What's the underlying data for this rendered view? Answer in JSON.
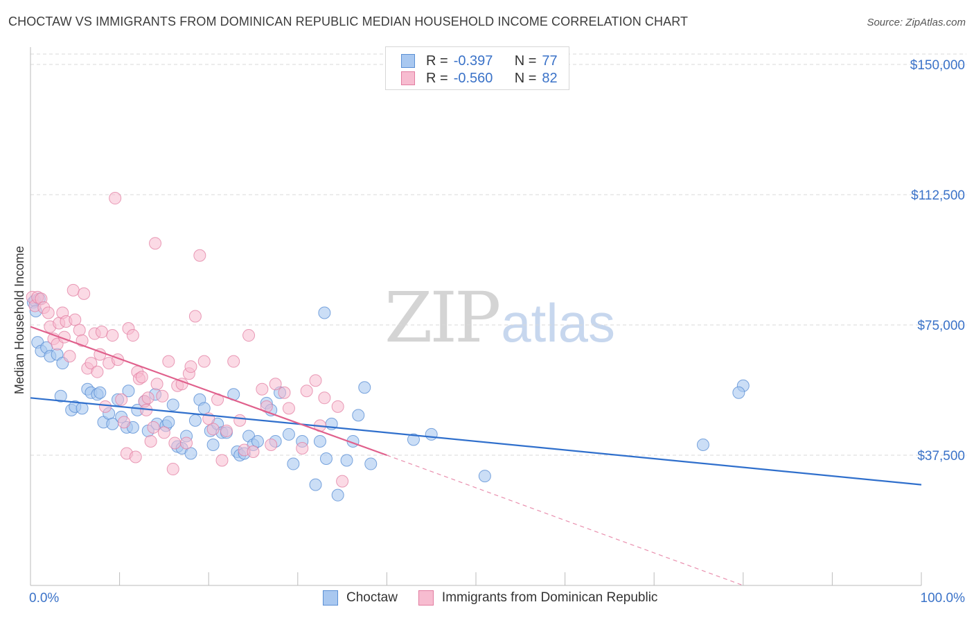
{
  "header": {
    "title": "CHOCTAW VS IMMIGRANTS FROM DOMINICAN REPUBLIC MEDIAN HOUSEHOLD INCOME CORRELATION CHART",
    "source": "Source: ZipAtlas.com"
  },
  "watermark": {
    "zip": "ZIP",
    "atlas": "atlas"
  },
  "legend": {
    "rows": [
      {
        "r_label": "R =",
        "r_value": "-0.397",
        "n_label": "N =",
        "n_value": "77",
        "color": "#a9c8f0",
        "stroke": "#5a8fd4"
      },
      {
        "r_label": "R =",
        "r_value": "-0.560",
        "n_label": "N =",
        "n_value": "82",
        "color": "#f7bcd0",
        "stroke": "#e27ca0"
      }
    ]
  },
  "bottom_legend": {
    "items": [
      {
        "label": "Choctaw",
        "color": "#a9c8f0",
        "stroke": "#5a8fd4"
      },
      {
        "label": "Immigrants from Dominican Republic",
        "color": "#f7bcd0",
        "stroke": "#e27ca0"
      }
    ]
  },
  "chart_data": {
    "type": "scatter",
    "title": "CHOCTAW VS IMMIGRANTS FROM DOMINICAN REPUBLIC MEDIAN HOUSEHOLD INCOME CORRELATION CHART",
    "xlabel": "",
    "ylabel": "Median Household Income",
    "xlim": [
      0,
      100
    ],
    "ylim": [
      0,
      153000
    ],
    "x_tick_labels": [
      "0.0%",
      "100.0%"
    ],
    "y_ticks": [
      37500,
      75000,
      112500,
      150000
    ],
    "y_tick_labels": [
      "$37,500",
      "$75,000",
      "$112,500",
      "$150,000"
    ],
    "colors": {
      "choctaw_fill": "#a9c8f0",
      "choctaw_stroke": "#5a8fd4",
      "choctaw_line": "#2f6fcc",
      "dominican_fill": "#f7bcd0",
      "dominican_stroke": "#e27ca0",
      "dominican_line": "#e0608c",
      "grid": "#d9d9d9",
      "axis": "#bbbbbb"
    },
    "series": [
      {
        "name": "Choctaw",
        "points": [
          [
            0.3,
            81500
          ],
          [
            0.5,
            82000
          ],
          [
            0.8,
            70000
          ],
          [
            1.2,
            67500
          ],
          [
            1.8,
            68500
          ],
          [
            2.2,
            66000
          ],
          [
            3.0,
            66500
          ],
          [
            3.6,
            64000
          ],
          [
            3.4,
            54500
          ],
          [
            4.6,
            50500
          ],
          [
            5.0,
            51500
          ],
          [
            5.8,
            51000
          ],
          [
            6.4,
            56500
          ],
          [
            6.8,
            55500
          ],
          [
            7.5,
            55000
          ],
          [
            7.8,
            55500
          ],
          [
            8.2,
            47000
          ],
          [
            8.8,
            49500
          ],
          [
            9.2,
            46500
          ],
          [
            9.8,
            53500
          ],
          [
            10.2,
            48500
          ],
          [
            10.8,
            45500
          ],
          [
            11.0,
            56000
          ],
          [
            11.5,
            45500
          ],
          [
            12.0,
            50500
          ],
          [
            12.8,
            53000
          ],
          [
            13.2,
            44500
          ],
          [
            14.0,
            55000
          ],
          [
            14.2,
            46500
          ],
          [
            15.2,
            46000
          ],
          [
            15.5,
            47000
          ],
          [
            16.0,
            52000
          ],
          [
            16.5,
            40000
          ],
          [
            17.0,
            39500
          ],
          [
            17.5,
            43000
          ],
          [
            18.0,
            38000
          ],
          [
            18.5,
            47500
          ],
          [
            19.0,
            53500
          ],
          [
            19.5,
            51000
          ],
          [
            20.2,
            44500
          ],
          [
            20.5,
            40500
          ],
          [
            21.0,
            46500
          ],
          [
            21.5,
            44000
          ],
          [
            22.0,
            44000
          ],
          [
            22.8,
            55000
          ],
          [
            23.2,
            38500
          ],
          [
            23.5,
            37500
          ],
          [
            24.0,
            38000
          ],
          [
            24.5,
            43000
          ],
          [
            25.0,
            40500
          ],
          [
            25.5,
            41500
          ],
          [
            26.5,
            52500
          ],
          [
            27.0,
            50500
          ],
          [
            27.5,
            41500
          ],
          [
            28.0,
            55500
          ],
          [
            29.0,
            43500
          ],
          [
            29.5,
            35000
          ],
          [
            30.5,
            41500
          ],
          [
            32.0,
            29000
          ],
          [
            32.5,
            41500
          ],
          [
            33.0,
            78500
          ],
          [
            33.2,
            36500
          ],
          [
            33.8,
            46500
          ],
          [
            34.5,
            26000
          ],
          [
            35.5,
            36000
          ],
          [
            36.2,
            41500
          ],
          [
            36.8,
            49000
          ],
          [
            37.5,
            57000
          ],
          [
            38.2,
            35000
          ],
          [
            43.0,
            42000
          ],
          [
            45.0,
            43500
          ],
          [
            51.0,
            31500
          ],
          [
            75.5,
            40500
          ],
          [
            80.0,
            57500
          ],
          [
            79.5,
            55500
          ],
          [
            1.0,
            82500
          ],
          [
            0.6,
            79000
          ]
        ]
      },
      {
        "name": "Immigrants from Dominican Republic",
        "points": [
          [
            0.2,
            83000
          ],
          [
            0.5,
            80500
          ],
          [
            0.8,
            83000
          ],
          [
            1.2,
            82500
          ],
          [
            1.5,
            80000
          ],
          [
            2.0,
            78500
          ],
          [
            2.2,
            74500
          ],
          [
            2.6,
            71000
          ],
          [
            3.0,
            69500
          ],
          [
            3.2,
            75500
          ],
          [
            3.6,
            78500
          ],
          [
            3.8,
            71500
          ],
          [
            4.0,
            76000
          ],
          [
            4.4,
            66000
          ],
          [
            4.8,
            85000
          ],
          [
            5.0,
            76500
          ],
          [
            5.5,
            73500
          ],
          [
            5.8,
            70500
          ],
          [
            6.0,
            84000
          ],
          [
            6.4,
            62500
          ],
          [
            6.8,
            64000
          ],
          [
            7.2,
            72500
          ],
          [
            7.5,
            61500
          ],
          [
            7.8,
            66500
          ],
          [
            8.0,
            73000
          ],
          [
            8.4,
            51500
          ],
          [
            8.8,
            64000
          ],
          [
            9.2,
            72000
          ],
          [
            9.5,
            111500
          ],
          [
            9.8,
            65000
          ],
          [
            10.2,
            53500
          ],
          [
            10.5,
            47000
          ],
          [
            10.8,
            38000
          ],
          [
            11.0,
            74000
          ],
          [
            11.5,
            72000
          ],
          [
            11.8,
            37000
          ],
          [
            12.0,
            61500
          ],
          [
            12.2,
            59500
          ],
          [
            12.5,
            60000
          ],
          [
            12.8,
            53000
          ],
          [
            13.0,
            50500
          ],
          [
            13.2,
            54000
          ],
          [
            13.5,
            41500
          ],
          [
            13.8,
            45500
          ],
          [
            14.0,
            98500
          ],
          [
            14.2,
            58000
          ],
          [
            14.8,
            54500
          ],
          [
            15.0,
            44000
          ],
          [
            15.5,
            64500
          ],
          [
            16.0,
            33500
          ],
          [
            16.2,
            41000
          ],
          [
            16.5,
            57500
          ],
          [
            17.0,
            58000
          ],
          [
            17.5,
            41000
          ],
          [
            17.8,
            61000
          ],
          [
            18.0,
            63000
          ],
          [
            18.5,
            77500
          ],
          [
            19.0,
            95000
          ],
          [
            19.5,
            64500
          ],
          [
            20.0,
            48000
          ],
          [
            20.5,
            45000
          ],
          [
            21.0,
            53500
          ],
          [
            21.5,
            36000
          ],
          [
            22.0,
            44500
          ],
          [
            22.8,
            64500
          ],
          [
            23.5,
            47500
          ],
          [
            24.0,
            39000
          ],
          [
            24.5,
            72000
          ],
          [
            25.0,
            38500
          ],
          [
            26.0,
            56500
          ],
          [
            26.5,
            51500
          ],
          [
            27.0,
            40500
          ],
          [
            27.5,
            58000
          ],
          [
            28.5,
            55500
          ],
          [
            29.0,
            51000
          ],
          [
            30.5,
            39500
          ],
          [
            31.0,
            56000
          ],
          [
            32.0,
            59000
          ],
          [
            32.5,
            46000
          ],
          [
            33.0,
            54000
          ],
          [
            34.5,
            51500
          ],
          [
            35.0,
            30000
          ]
        ]
      }
    ],
    "trend_lines": [
      {
        "series": "Choctaw",
        "x_start": 0,
        "y_start": 54000,
        "x_end": 100,
        "y_end": 29000
      },
      {
        "series": "Immigrants from Dominican Republic",
        "x_start": 0,
        "y_start": 74500,
        "x_end": 40,
        "y_end": 37500,
        "dashed_to_x": 80,
        "dashed_to_y": 0
      }
    ]
  }
}
